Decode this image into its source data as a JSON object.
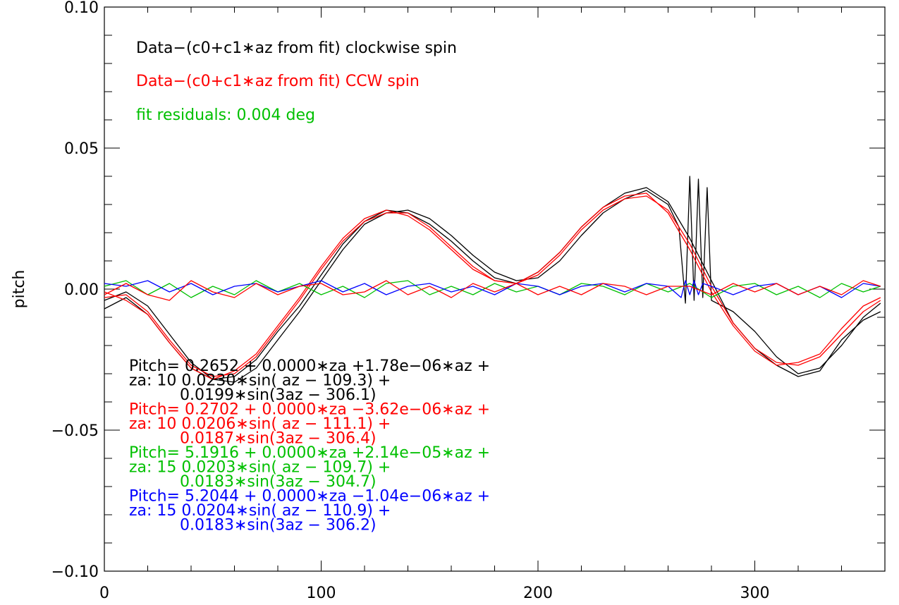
{
  "chart_data": {
    "type": "line",
    "title": "",
    "xlabel": "",
    "ylabel": "pitch",
    "xlim": [
      0,
      360
    ],
    "ylim": [
      -0.1,
      0.1
    ],
    "grid": false,
    "x_ticks": [
      0,
      100,
      200,
      300
    ],
    "x_tick_labels": [
      "0",
      "100",
      "200",
      "300"
    ],
    "y_ticks": [
      -0.1,
      -0.05,
      0.0,
      0.05,
      0.1
    ],
    "y_tick_labels": [
      "−0.10",
      "−0.05",
      "0.00",
      "0.05",
      "0.10"
    ],
    "legend": [
      {
        "text": "Data−(c0+c1∗az from fit) clockwise spin",
        "color": "#000000"
      },
      {
        "text": "Data−(c0+c1∗az from fit) CCW spin",
        "color": "#ff0000"
      },
      {
        "text": "fit residuals: 0.004 deg",
        "color": "#00c000"
      }
    ],
    "fit_annotations": [
      {
        "color": "#000000",
        "lines": [
          "Pitch= 0.2652 + 0.0000∗za +1.78e−06∗az +",
          "za: 10 0.0230∗sin( az − 109.3) +",
          "0.0199∗sin(3az − 306.1)"
        ]
      },
      {
        "color": "#ff0000",
        "lines": [
          "Pitch= 0.2702 + 0.0000∗za −3.62e−06∗az +",
          "za: 10 0.0206∗sin( az − 111.1) +",
          "0.0187∗sin(3az − 306.4)"
        ]
      },
      {
        "color": "#00c000",
        "lines": [
          "Pitch= 5.1916 + 0.0000∗za +2.14e−05∗az +",
          "za: 15 0.0203∗sin( az − 109.7) +",
          "0.0183∗sin(3az − 304.7)"
        ]
      },
      {
        "color": "#0000ff",
        "lines": [
          "Pitch= 5.2044 + 0.0000∗za −1.04e−06∗az +",
          "za: 15 0.0204∗sin( az − 110.9) +",
          "0.0183∗sin(3az − 306.2)"
        ]
      }
    ],
    "series": [
      {
        "color": "#000000",
        "x": [
          0,
          10,
          20,
          30,
          40,
          50,
          60,
          70,
          80,
          90,
          100,
          110,
          120,
          130,
          140,
          150,
          160,
          170,
          180,
          190,
          200,
          210,
          220,
          230,
          240,
          250,
          260,
          265,
          268,
          270,
          272,
          274,
          276,
          278,
          280,
          290,
          300,
          310,
          320,
          330,
          340,
          350,
          358
        ],
        "y": [
          -0.004,
          -0.001,
          -0.006,
          -0.016,
          -0.026,
          -0.032,
          -0.033,
          -0.028,
          -0.018,
          -0.008,
          0.003,
          0.014,
          0.023,
          0.027,
          0.028,
          0.025,
          0.019,
          0.012,
          0.006,
          0.003,
          0.004,
          0.01,
          0.019,
          0.027,
          0.032,
          0.035,
          0.03,
          0.022,
          -0.005,
          0.04,
          -0.004,
          0.039,
          -0.003,
          0.036,
          -0.004,
          -0.008,
          -0.015,
          -0.024,
          -0.03,
          -0.028,
          -0.02,
          -0.01,
          -0.005
        ]
      },
      {
        "color": "#000000",
        "x": [
          0,
          10,
          20,
          30,
          40,
          50,
          60,
          70,
          80,
          90,
          100,
          110,
          120,
          130,
          140,
          150,
          160,
          170,
          180,
          190,
          200,
          210,
          220,
          230,
          240,
          250,
          260,
          270,
          280,
          290,
          300,
          310,
          320,
          330,
          340,
          350,
          358
        ],
        "y": [
          -0.007,
          -0.003,
          -0.009,
          -0.019,
          -0.028,
          -0.032,
          -0.031,
          -0.025,
          -0.015,
          -0.006,
          0.005,
          0.016,
          0.024,
          0.028,
          0.027,
          0.023,
          0.017,
          0.01,
          0.004,
          0.002,
          0.006,
          0.013,
          0.022,
          0.029,
          0.034,
          0.036,
          0.031,
          0.018,
          0.003,
          -0.012,
          -0.021,
          -0.027,
          -0.031,
          -0.029,
          -0.018,
          -0.011,
          -0.008
        ]
      },
      {
        "color": "#ff0000",
        "x": [
          0,
          10,
          20,
          30,
          40,
          50,
          60,
          70,
          80,
          90,
          100,
          110,
          120,
          130,
          140,
          150,
          160,
          170,
          180,
          190,
          200,
          210,
          220,
          230,
          240,
          250,
          260,
          270,
          280,
          290,
          300,
          310,
          320,
          330,
          340,
          350,
          358
        ],
        "y": [
          -0.003,
          -0.002,
          -0.008,
          -0.018,
          -0.027,
          -0.031,
          -0.03,
          -0.024,
          -0.014,
          -0.004,
          0.007,
          0.017,
          0.024,
          0.027,
          0.027,
          0.022,
          0.015,
          0.008,
          0.003,
          0.002,
          0.005,
          0.012,
          0.021,
          0.028,
          0.032,
          0.033,
          0.028,
          0.016,
          0.001,
          -0.012,
          -0.021,
          -0.026,
          -0.027,
          -0.024,
          -0.016,
          -0.008,
          -0.004
        ]
      },
      {
        "color": "#ff0000",
        "x": [
          0,
          10,
          20,
          30,
          40,
          50,
          60,
          70,
          80,
          90,
          100,
          110,
          120,
          130,
          140,
          150,
          160,
          170,
          180,
          190,
          200,
          210,
          220,
          230,
          240,
          250,
          260,
          270,
          280,
          290,
          300,
          310,
          320,
          330,
          340,
          350,
          358
        ],
        "y": [
          -0.001,
          -0.004,
          -0.009,
          -0.019,
          -0.028,
          -0.032,
          -0.029,
          -0.023,
          -0.013,
          -0.003,
          0.008,
          0.018,
          0.025,
          0.028,
          0.026,
          0.021,
          0.014,
          0.007,
          0.003,
          0.002,
          0.006,
          0.013,
          0.022,
          0.029,
          0.033,
          0.034,
          0.027,
          0.014,
          -0.001,
          -0.013,
          -0.022,
          -0.027,
          -0.026,
          -0.023,
          -0.014,
          -0.006,
          -0.003
        ]
      },
      {
        "color": "#00c000",
        "x": [
          0,
          10,
          20,
          30,
          40,
          50,
          60,
          70,
          80,
          90,
          100,
          110,
          120,
          130,
          140,
          150,
          160,
          170,
          180,
          190,
          200,
          210,
          220,
          230,
          240,
          250,
          260,
          270,
          280,
          290,
          300,
          310,
          320,
          330,
          340,
          350,
          358
        ],
        "y": [
          0.001,
          0.003,
          -0.002,
          0.002,
          -0.003,
          0.001,
          -0.002,
          0.003,
          -0.001,
          0.002,
          -0.002,
          0.001,
          -0.003,
          0.002,
          0.003,
          -0.002,
          0.001,
          -0.002,
          0.002,
          -0.001,
          0.001,
          -0.002,
          0.002,
          0.001,
          -0.002,
          0.002,
          -0.001,
          0.002,
          -0.003,
          0.001,
          0.002,
          -0.002,
          0.001,
          -0.003,
          0.002,
          -0.001,
          0.001
        ]
      },
      {
        "color": "#0000ff",
        "x": [
          0,
          10,
          20,
          30,
          40,
          50,
          60,
          70,
          80,
          90,
          100,
          110,
          120,
          130,
          140,
          150,
          160,
          170,
          180,
          190,
          200,
          210,
          220,
          230,
          240,
          250,
          260,
          266,
          268,
          270,
          272,
          274,
          276,
          280,
          290,
          300,
          310,
          320,
          330,
          340,
          350,
          358
        ],
        "y": [
          0.002,
          0.001,
          0.003,
          -0.001,
          0.002,
          -0.002,
          0.001,
          0.002,
          -0.001,
          0.001,
          0.003,
          -0.001,
          0.002,
          -0.002,
          0.001,
          0.002,
          -0.001,
          0.001,
          -0.002,
          0.002,
          0.001,
          -0.002,
          0.001,
          0.002,
          -0.001,
          0.002,
          0.001,
          -0.003,
          0.003,
          -0.002,
          0.003,
          -0.002,
          0.002,
          0.001,
          -0.002,
          0.001,
          0.002,
          -0.002,
          0.001,
          -0.003,
          0.002,
          0.001
        ]
      },
      {
        "color": "#ff0000",
        "x": [
          0,
          10,
          20,
          30,
          40,
          50,
          60,
          70,
          80,
          90,
          100,
          110,
          120,
          130,
          140,
          150,
          160,
          170,
          180,
          190,
          200,
          210,
          220,
          230,
          240,
          250,
          260,
          270,
          280,
          290,
          300,
          310,
          320,
          330,
          340,
          350,
          358
        ],
        "y": [
          -0.002,
          0.002,
          -0.002,
          -0.004,
          0.003,
          -0.001,
          -0.003,
          0.002,
          -0.002,
          0.001,
          0.002,
          -0.002,
          -0.001,
          0.003,
          -0.002,
          0.001,
          -0.003,
          0.002,
          -0.001,
          0.002,
          -0.002,
          0.001,
          -0.002,
          0.002,
          0.001,
          -0.002,
          0.001,
          0.001,
          -0.002,
          0.002,
          -0.001,
          0.002,
          -0.002,
          0.001,
          -0.002,
          0.003,
          0.001
        ]
      }
    ]
  }
}
